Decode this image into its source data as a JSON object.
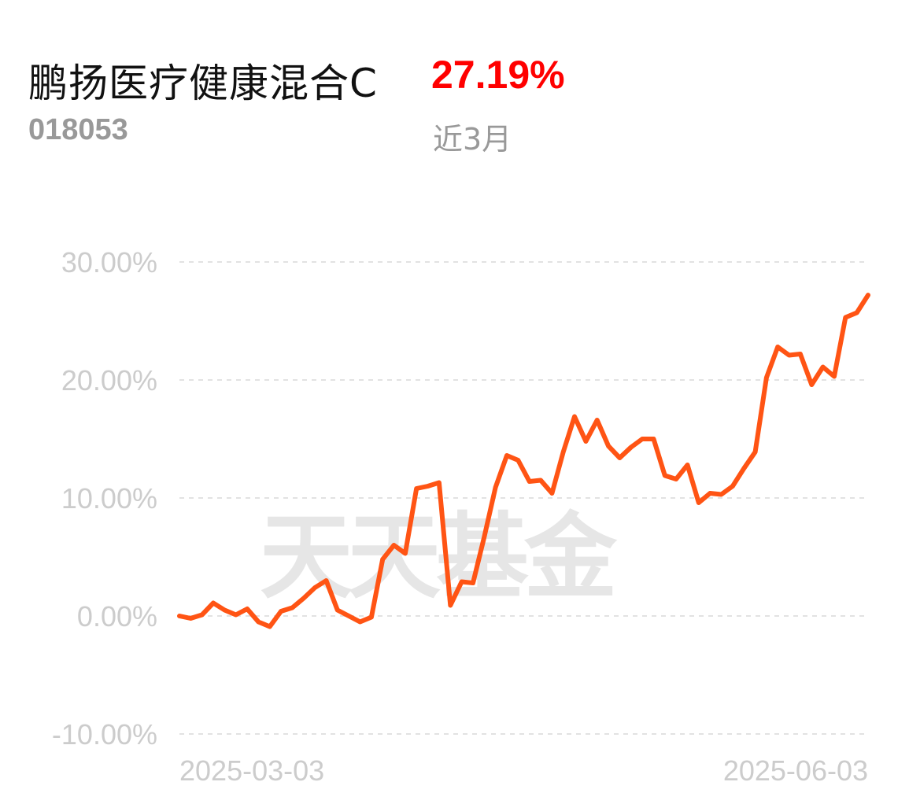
{
  "header": {
    "fund_name": "鹏扬医疗健康混合C",
    "return_value": "27.19%",
    "fund_code": "018053",
    "period": "近3月"
  },
  "watermark": "天天基金",
  "colors": {
    "line": "#ff5414",
    "return_text": "#ff0000",
    "grid": "#e2e2e2",
    "tick_text": "#cccccc",
    "muted_text": "#999999"
  },
  "chart_data": {
    "type": "line",
    "title": "",
    "xlabel": "",
    "ylabel": "",
    "ylim": [
      -10,
      30
    ],
    "y_ticks": [
      30,
      20,
      10,
      0,
      -10
    ],
    "y_tick_labels": [
      "30.00%",
      "20.00%",
      "10.00%",
      "0.00%",
      "-10.00%"
    ],
    "x_tick_labels": [
      "2025-03-03",
      "2025-06-03"
    ],
    "grid": true,
    "legend": "none",
    "series": [
      {
        "values": [
          0.0,
          -0.2,
          0.1,
          1.1,
          0.5,
          0.1,
          0.6,
          -0.5,
          -0.9,
          0.4,
          0.7,
          1.5,
          2.4,
          3.0,
          0.5,
          0.0,
          -0.5,
          -0.1,
          4.8,
          6.0,
          5.3,
          10.8,
          11.0,
          11.3,
          0.9,
          2.9,
          2.8,
          6.7,
          10.9,
          13.6,
          13.2,
          11.4,
          11.5,
          10.4,
          13.9,
          16.9,
          14.8,
          16.6,
          14.4,
          13.4,
          14.3,
          15.0,
          15.0,
          11.9,
          11.6,
          12.8,
          9.6,
          10.4,
          10.3,
          11.0,
          12.5,
          13.9,
          20.2,
          22.8,
          22.1,
          22.2,
          19.6,
          21.1,
          20.3,
          25.3,
          25.7,
          27.19
        ]
      }
    ]
  }
}
